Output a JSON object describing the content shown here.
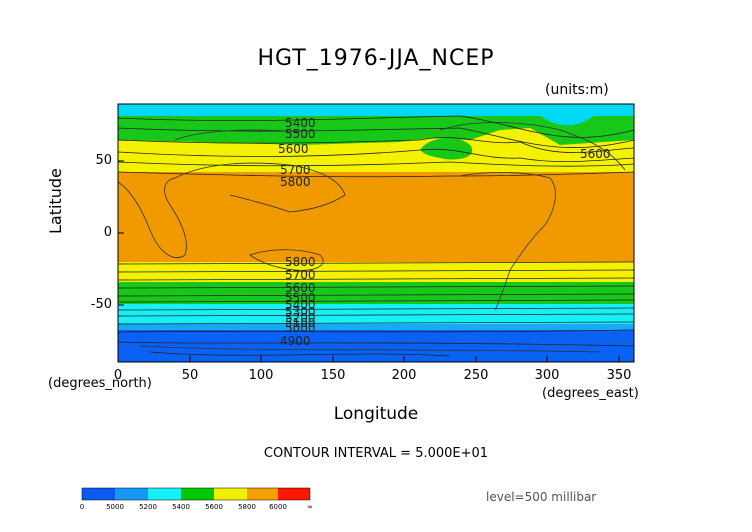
{
  "title": "HGT_1976-JJA_NCEP",
  "units": "(units:m)",
  "y_axis": {
    "label": "Latitude",
    "unit": "(degrees_north)",
    "ticks": [
      "50",
      "0",
      "-50"
    ]
  },
  "x_axis": {
    "label": "Longitude",
    "unit": "(degrees_east)",
    "ticks": [
      "0",
      "50",
      "100",
      "150",
      "200",
      "250",
      "300",
      "350"
    ]
  },
  "contour_interval": "CONTOUR INTERVAL = 5.000E+01",
  "level": "level=500 millibar",
  "contour_labels": [
    "5400",
    "5500",
    "5600",
    "5700",
    "5800",
    "5600",
    "5800",
    "5700",
    "5600",
    "5500",
    "5400",
    "5300",
    "5200",
    "5100",
    "5000",
    "4900"
  ],
  "colorbar": {
    "labels": [
      "0",
      "5000",
      "5200",
      "5400",
      "5600",
      "5800",
      "6000",
      "∞"
    ],
    "colors": [
      "#0a5cf0",
      "#1898f5",
      "#18f0f8",
      "#00c800",
      "#f0f000",
      "#f5a000",
      "#ff1800"
    ]
  },
  "bands": {
    "high_lat_north": "#00d8f5",
    "green": "#18c818",
    "yellow": "#f5f200",
    "orange": "#f09a00",
    "light_blue": "#18a8f8",
    "blue": "#0a62f5"
  }
}
